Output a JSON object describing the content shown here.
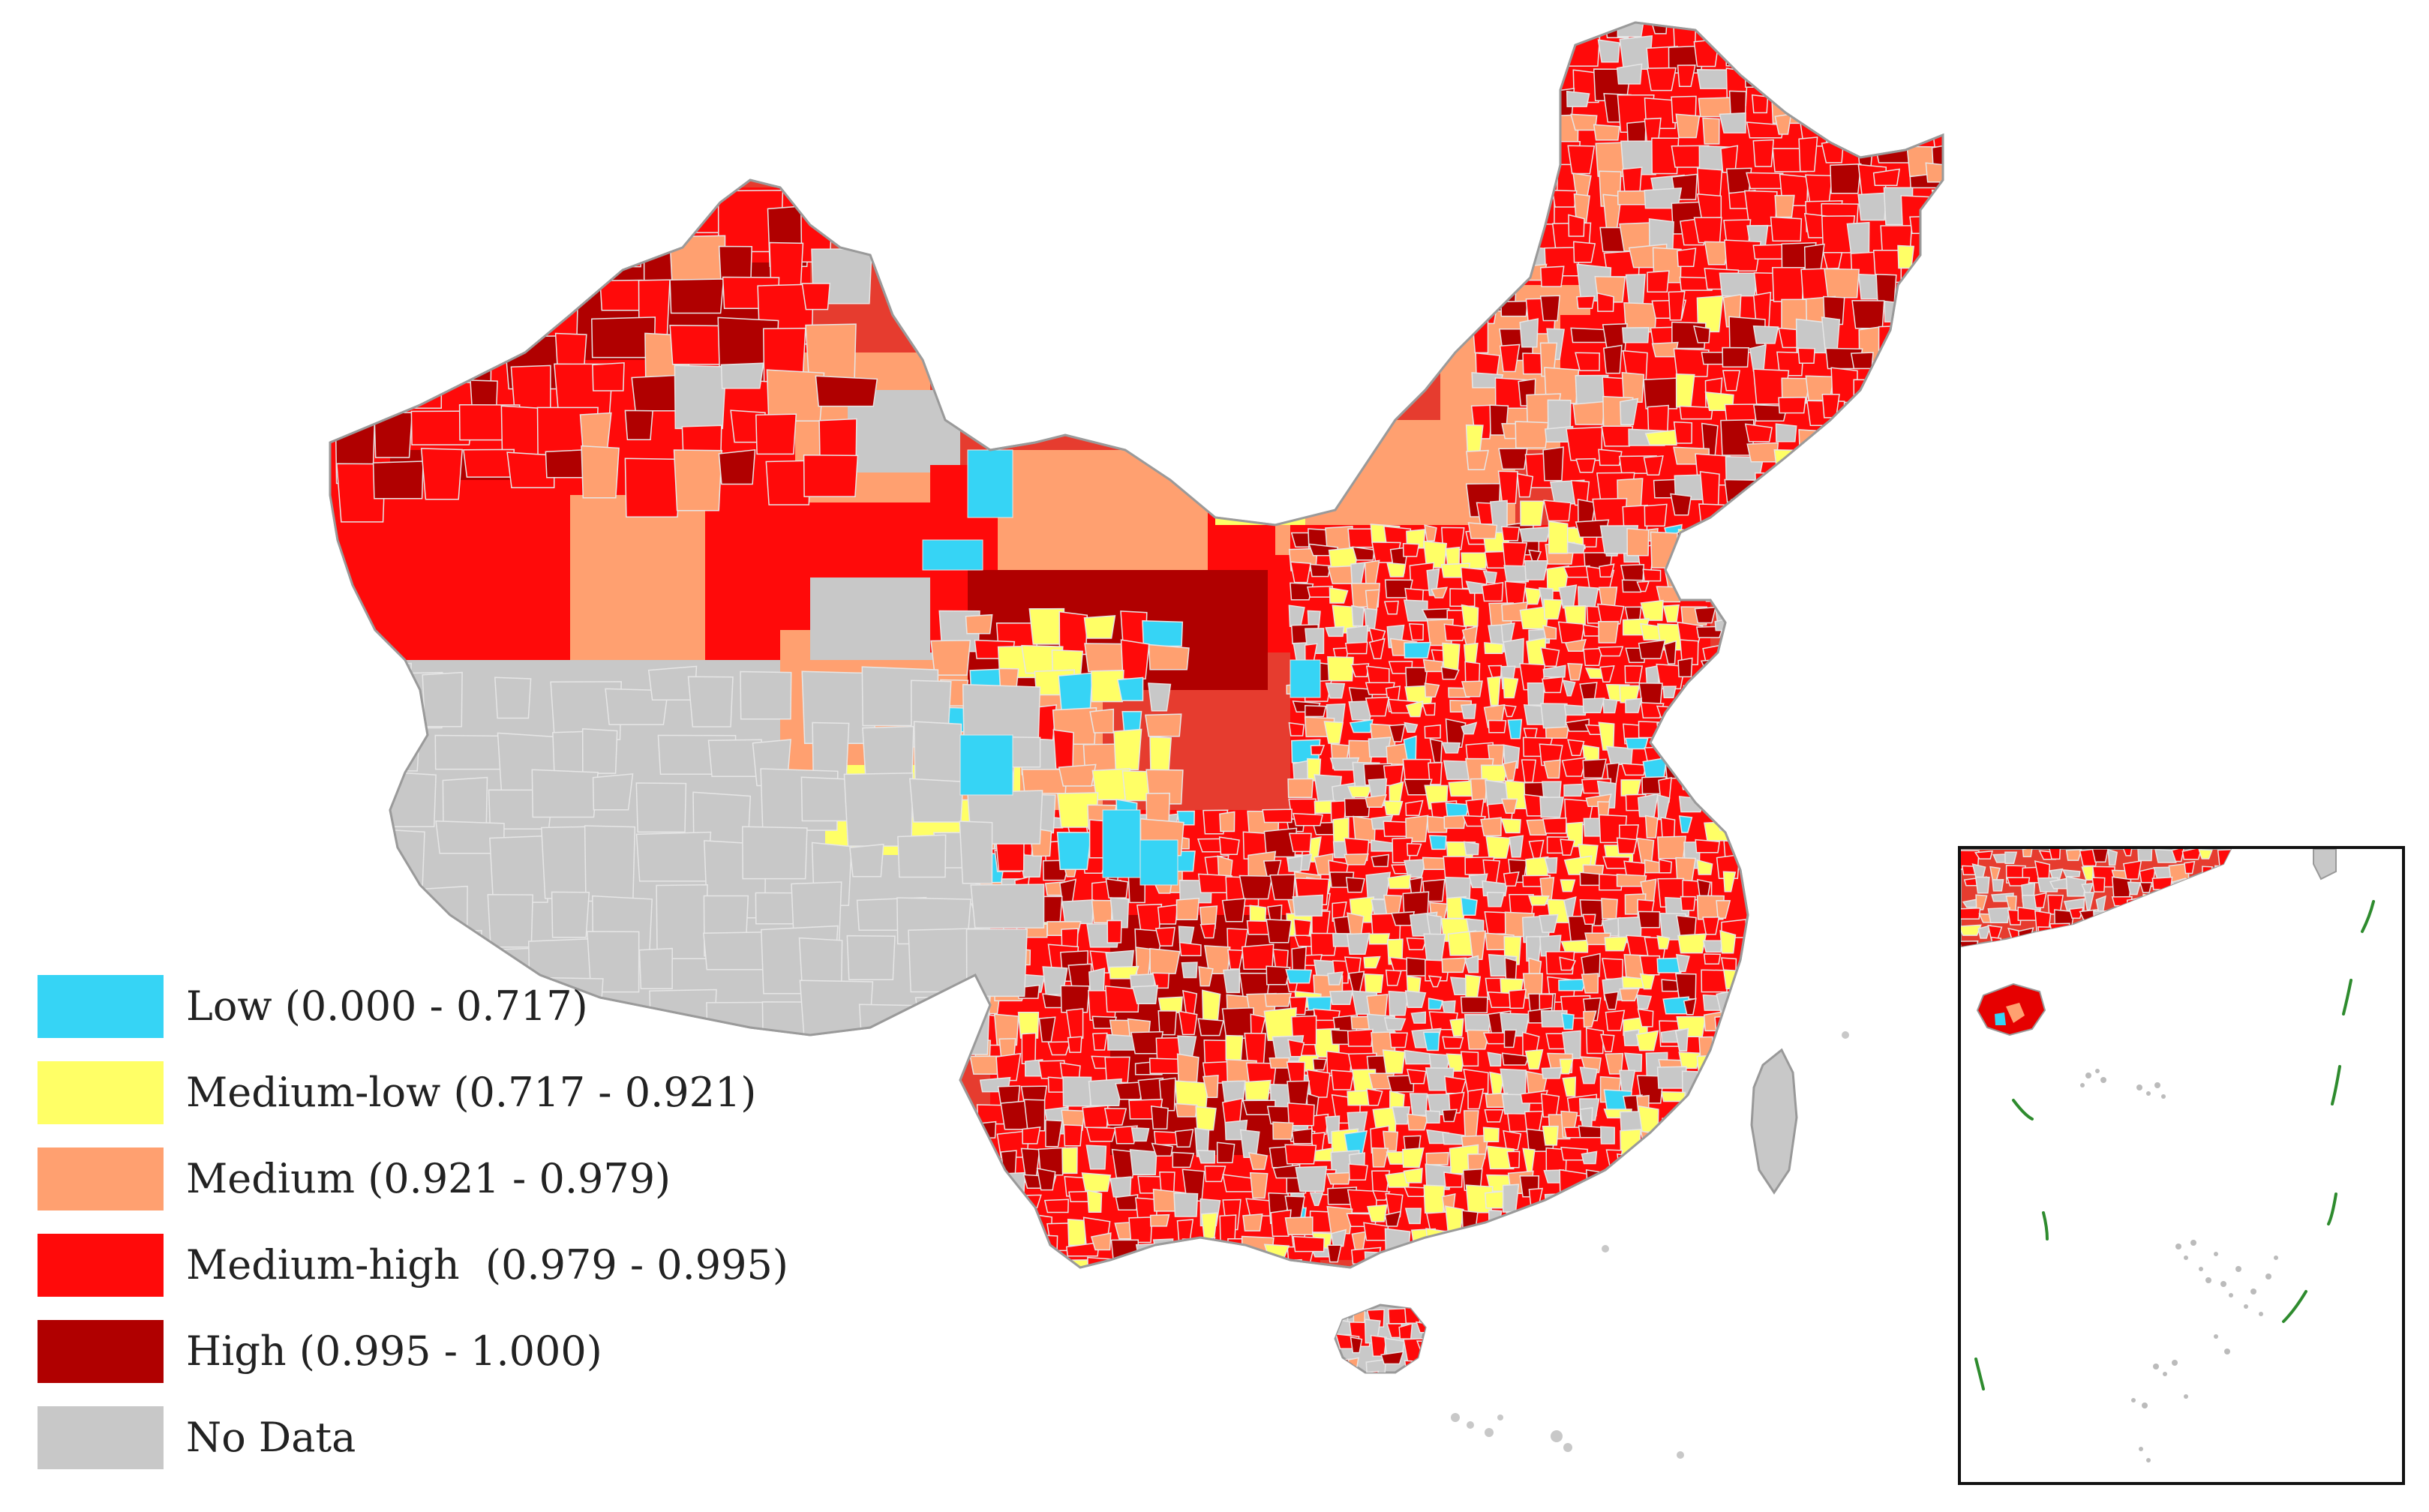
{
  "map": {
    "colors": {
      "low": "#36D4F5",
      "medium_low": "#FFFF66",
      "medium": "#FFA070",
      "medium_high": "#FF0A0A",
      "high": "#B00000",
      "no_data": "#C8C8C8",
      "nine_dash_line": "#2E8B2E",
      "border": "#E6E6E6"
    },
    "legend": {
      "items": [
        {
          "key": "low",
          "label": "Low (0.000 - 0.717)",
          "color": "#36D4F5"
        },
        {
          "key": "medium_low",
          "label": "Medium-low (0.717 - 0.921)",
          "color": "#FFFF66"
        },
        {
          "key": "medium",
          "label": "Medium (0.921 - 0.979)",
          "color": "#FFA070"
        },
        {
          "key": "medium_high",
          "label": "Medium-high  (0.979 - 0.995)",
          "color": "#FF0A0A"
        },
        {
          "key": "high",
          "label": "High (0.995 - 1.000)",
          "color": "#B00000"
        },
        {
          "key": "no_data",
          "label": "No Data",
          "color": "#C8C8C8"
        }
      ]
    }
  }
}
